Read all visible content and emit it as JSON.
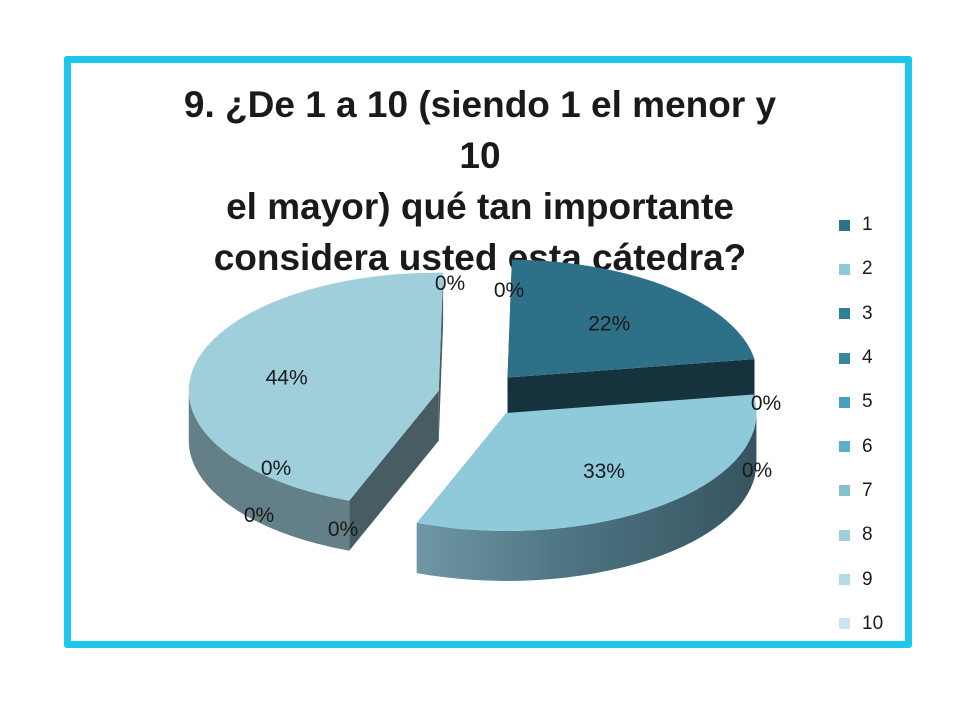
{
  "chart_data": {
    "type": "pie",
    "style": "3d-exploded",
    "title_lines": [
      "9. ¿De 1 a 10 (siendo 1 el menor y 10",
      "el mayor) qué tan importante",
      "considera usted esta cátedra?"
    ],
    "categories": [
      "1",
      "2",
      "3",
      "4",
      "5",
      "6",
      "7",
      "8",
      "9",
      "10"
    ],
    "values": [
      22,
      33,
      0,
      0,
      0,
      0,
      0,
      44,
      0,
      0
    ],
    "labels": [
      "22%",
      "33%",
      "0%",
      "0%",
      "0%",
      "0%",
      "0%",
      "44%",
      "0%",
      "0%"
    ],
    "legend_position": "right",
    "colors": [
      "#2e7088",
      "#8ecad9",
      "#2f8199",
      "#37889f",
      "#45a2bc",
      "#5cb1c9",
      "#86bfce",
      "#a0cfdc",
      "#b4dae6",
      "#c9e5ee"
    ],
    "frame_color": "#1cc7ec"
  }
}
